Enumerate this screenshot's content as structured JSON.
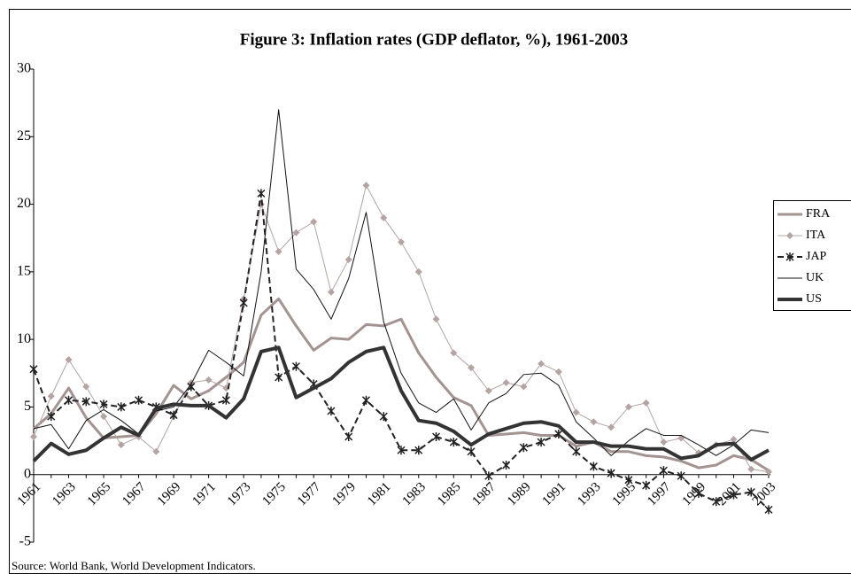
{
  "chart_data": {
    "type": "line",
    "title": "Figure 3: Inflation rates (GDP deflator, %), 1961-2003",
    "source": "Source: World Bank, World Development Indicators.",
    "categories": [
      "1961",
      null,
      "1963",
      null,
      "1965",
      null,
      "1967",
      null,
      "1969",
      null,
      "1971",
      null,
      "1973",
      null,
      "1975",
      null,
      "1977",
      null,
      "1979",
      null,
      "1981",
      null,
      "1983",
      null,
      "1985",
      null,
      "1987",
      null,
      "1989",
      null,
      "1991",
      null,
      "1993",
      null,
      "1995",
      null,
      "1997",
      null,
      "1999",
      null,
      "2001",
      null,
      "2003"
    ],
    "ylim": [
      -5,
      30
    ],
    "yticks": [
      -5,
      0,
      5,
      10,
      15,
      20,
      25,
      30
    ],
    "grid": false,
    "legend": "right",
    "series": [
      {
        "name": "FRA",
        "color": "#a39391",
        "values": [
          3.4,
          4.5,
          6.4,
          4.2,
          2.7,
          2.8,
          2.9,
          4.5,
          6.6,
          5.6,
          6.2,
          7.2,
          8.3,
          11.8,
          13.0,
          11.0,
          9.2,
          10.1,
          10.0,
          11.1,
          11.0,
          11.5,
          9.0,
          7.2,
          5.7,
          5.1,
          2.9,
          3.0,
          3.1,
          2.9,
          2.9,
          2.1,
          2.4,
          1.7,
          1.7,
          1.4,
          1.3,
          1.0,
          0.5,
          0.7,
          1.4,
          1.1,
          0.3
        ]
      },
      {
        "name": "ITA",
        "color": "#b4a4a2",
        "values": [
          2.8,
          5.8,
          8.5,
          6.5,
          4.3,
          2.2,
          2.8,
          1.7,
          4.3,
          6.8,
          7.0,
          6.4,
          13.0,
          20.0,
          16.5,
          17.9,
          18.7,
          13.5,
          15.9,
          21.4,
          19.0,
          17.2,
          15.0,
          11.5,
          9.0,
          7.9,
          6.2,
          6.8,
          6.5,
          8.2,
          7.6,
          4.6,
          3.9,
          3.5,
          5.0,
          5.3,
          2.4,
          2.7,
          1.6,
          2.2,
          2.6,
          0.4,
          0.2
        ]
      },
      {
        "name": "JAP",
        "color": "#222222",
        "values": [
          7.8,
          4.3,
          5.5,
          5.4,
          5.2,
          5.0,
          5.5,
          5.0,
          4.4,
          6.5,
          5.1,
          5.5,
          12.7,
          20.8,
          7.2,
          8.0,
          6.7,
          4.7,
          2.8,
          5.5,
          4.3,
          1.8,
          1.8,
          2.8,
          2.4,
          1.7,
          -0.1,
          0.7,
          2.0,
          2.4,
          3.0,
          1.7,
          0.6,
          0.1,
          -0.4,
          -0.8,
          0.3,
          -0.1,
          -1.4,
          -2.0,
          -1.5,
          -1.3,
          -2.6
        ]
      },
      {
        "name": "UK",
        "color": "#111111",
        "values": [
          3.4,
          3.7,
          1.9,
          4.0,
          4.8,
          4.0,
          3.0,
          4.7,
          5.0,
          6.7,
          9.2,
          8.3,
          7.3,
          15.0,
          27.0,
          15.2,
          13.7,
          11.5,
          14.5,
          19.4,
          11.3,
          7.5,
          5.3,
          4.6,
          5.6,
          3.3,
          5.3,
          6.0,
          7.4,
          7.5,
          6.6,
          3.9,
          2.7,
          1.4,
          2.5,
          3.4,
          2.9,
          2.9,
          2.2,
          1.4,
          2.2,
          3.3,
          3.1
        ]
      },
      {
        "name": "US",
        "color": "#333333",
        "values": [
          1.0,
          2.3,
          1.5,
          1.8,
          2.7,
          3.5,
          2.9,
          4.9,
          5.2,
          5.1,
          5.1,
          4.2,
          5.6,
          9.1,
          9.4,
          5.7,
          6.4,
          7.1,
          8.3,
          9.1,
          9.4,
          6.2,
          4.0,
          3.8,
          3.2,
          2.2,
          3.0,
          3.4,
          3.8,
          3.9,
          3.6,
          2.4,
          2.4,
          2.1,
          2.1,
          1.9,
          1.9,
          1.2,
          1.4,
          2.2,
          2.3,
          1.1,
          1.8
        ]
      }
    ]
  }
}
